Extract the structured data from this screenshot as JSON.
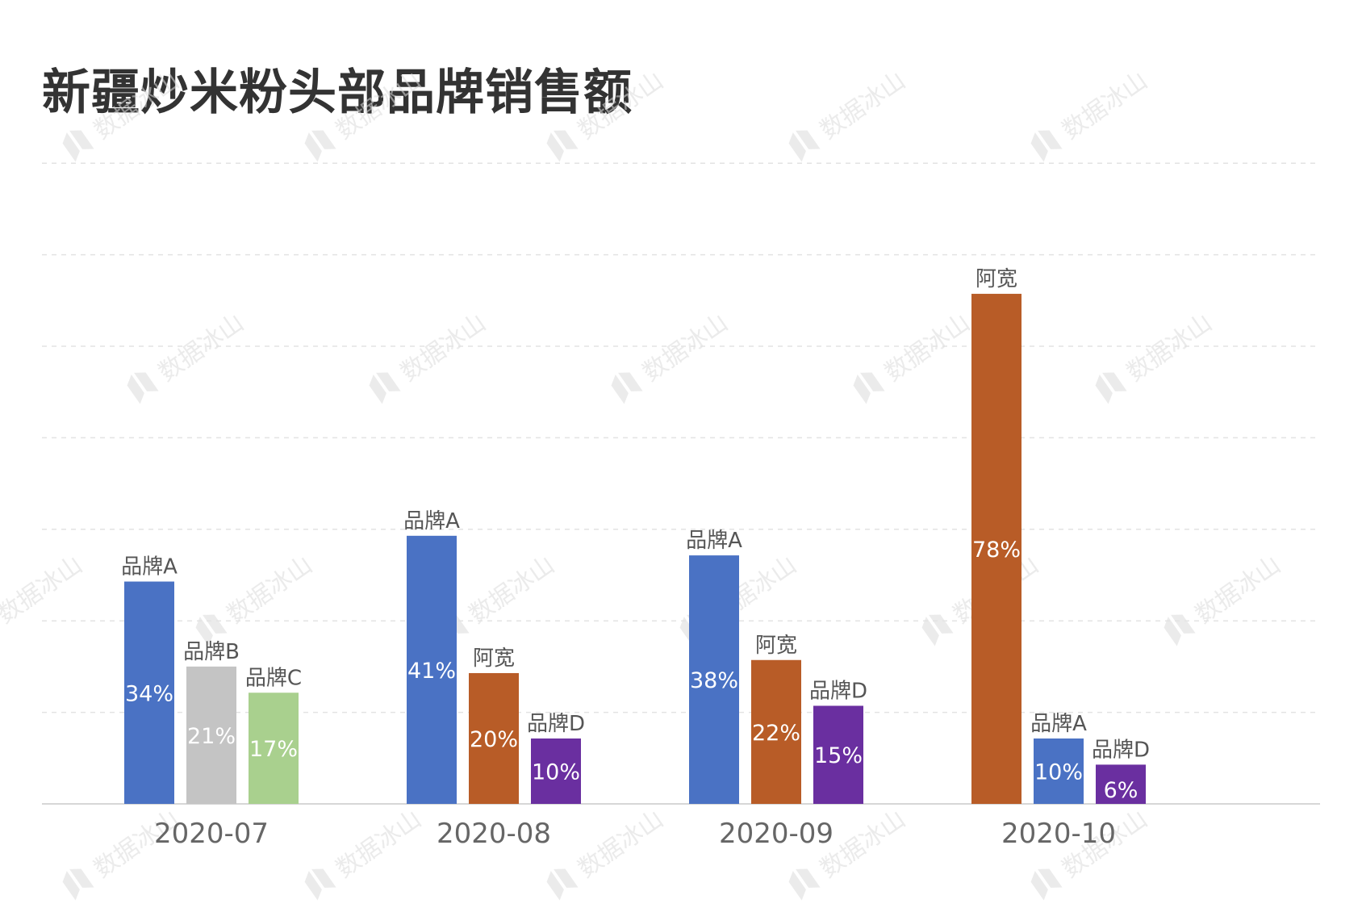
{
  "chart_data": {
    "type": "bar",
    "title": "新疆炒米粉头部品牌销售额",
    "xlabel": "",
    "ylabel": "",
    "ylim": [
      0,
      98
    ],
    "grid": true,
    "value_format": "percent",
    "categories": [
      "2020-07",
      "2020-08",
      "2020-09",
      "2020-10"
    ],
    "groups": [
      {
        "category": "2020-07",
        "bars": [
          {
            "brand": "品牌A",
            "value": 34
          },
          {
            "brand": "品牌B",
            "value": 21
          },
          {
            "brand": "品牌C",
            "value": 17
          }
        ]
      },
      {
        "category": "2020-08",
        "bars": [
          {
            "brand": "品牌A",
            "value": 41
          },
          {
            "brand": "阿宽",
            "value": 20
          },
          {
            "brand": "品牌D",
            "value": 10
          }
        ]
      },
      {
        "category": "2020-09",
        "bars": [
          {
            "brand": "品牌A",
            "value": 38
          },
          {
            "brand": "阿宽",
            "value": 22
          },
          {
            "brand": "品牌D",
            "value": 15
          }
        ]
      },
      {
        "category": "2020-10",
        "bars": [
          {
            "brand": "阿宽",
            "value": 78
          },
          {
            "brand": "品牌A",
            "value": 10
          },
          {
            "brand": "品牌D",
            "value": 6
          }
        ]
      }
    ],
    "brand_colors": {
      "品牌A": "#4a72c4",
      "品牌B": "#c4c4c4",
      "品牌C": "#a9d08e",
      "阿宽": "#b85c27",
      "品牌D": "#6a2fa0"
    }
  },
  "watermark": {
    "text": "数据冰山",
    "icon": "data-iceberg-logo-icon"
  }
}
